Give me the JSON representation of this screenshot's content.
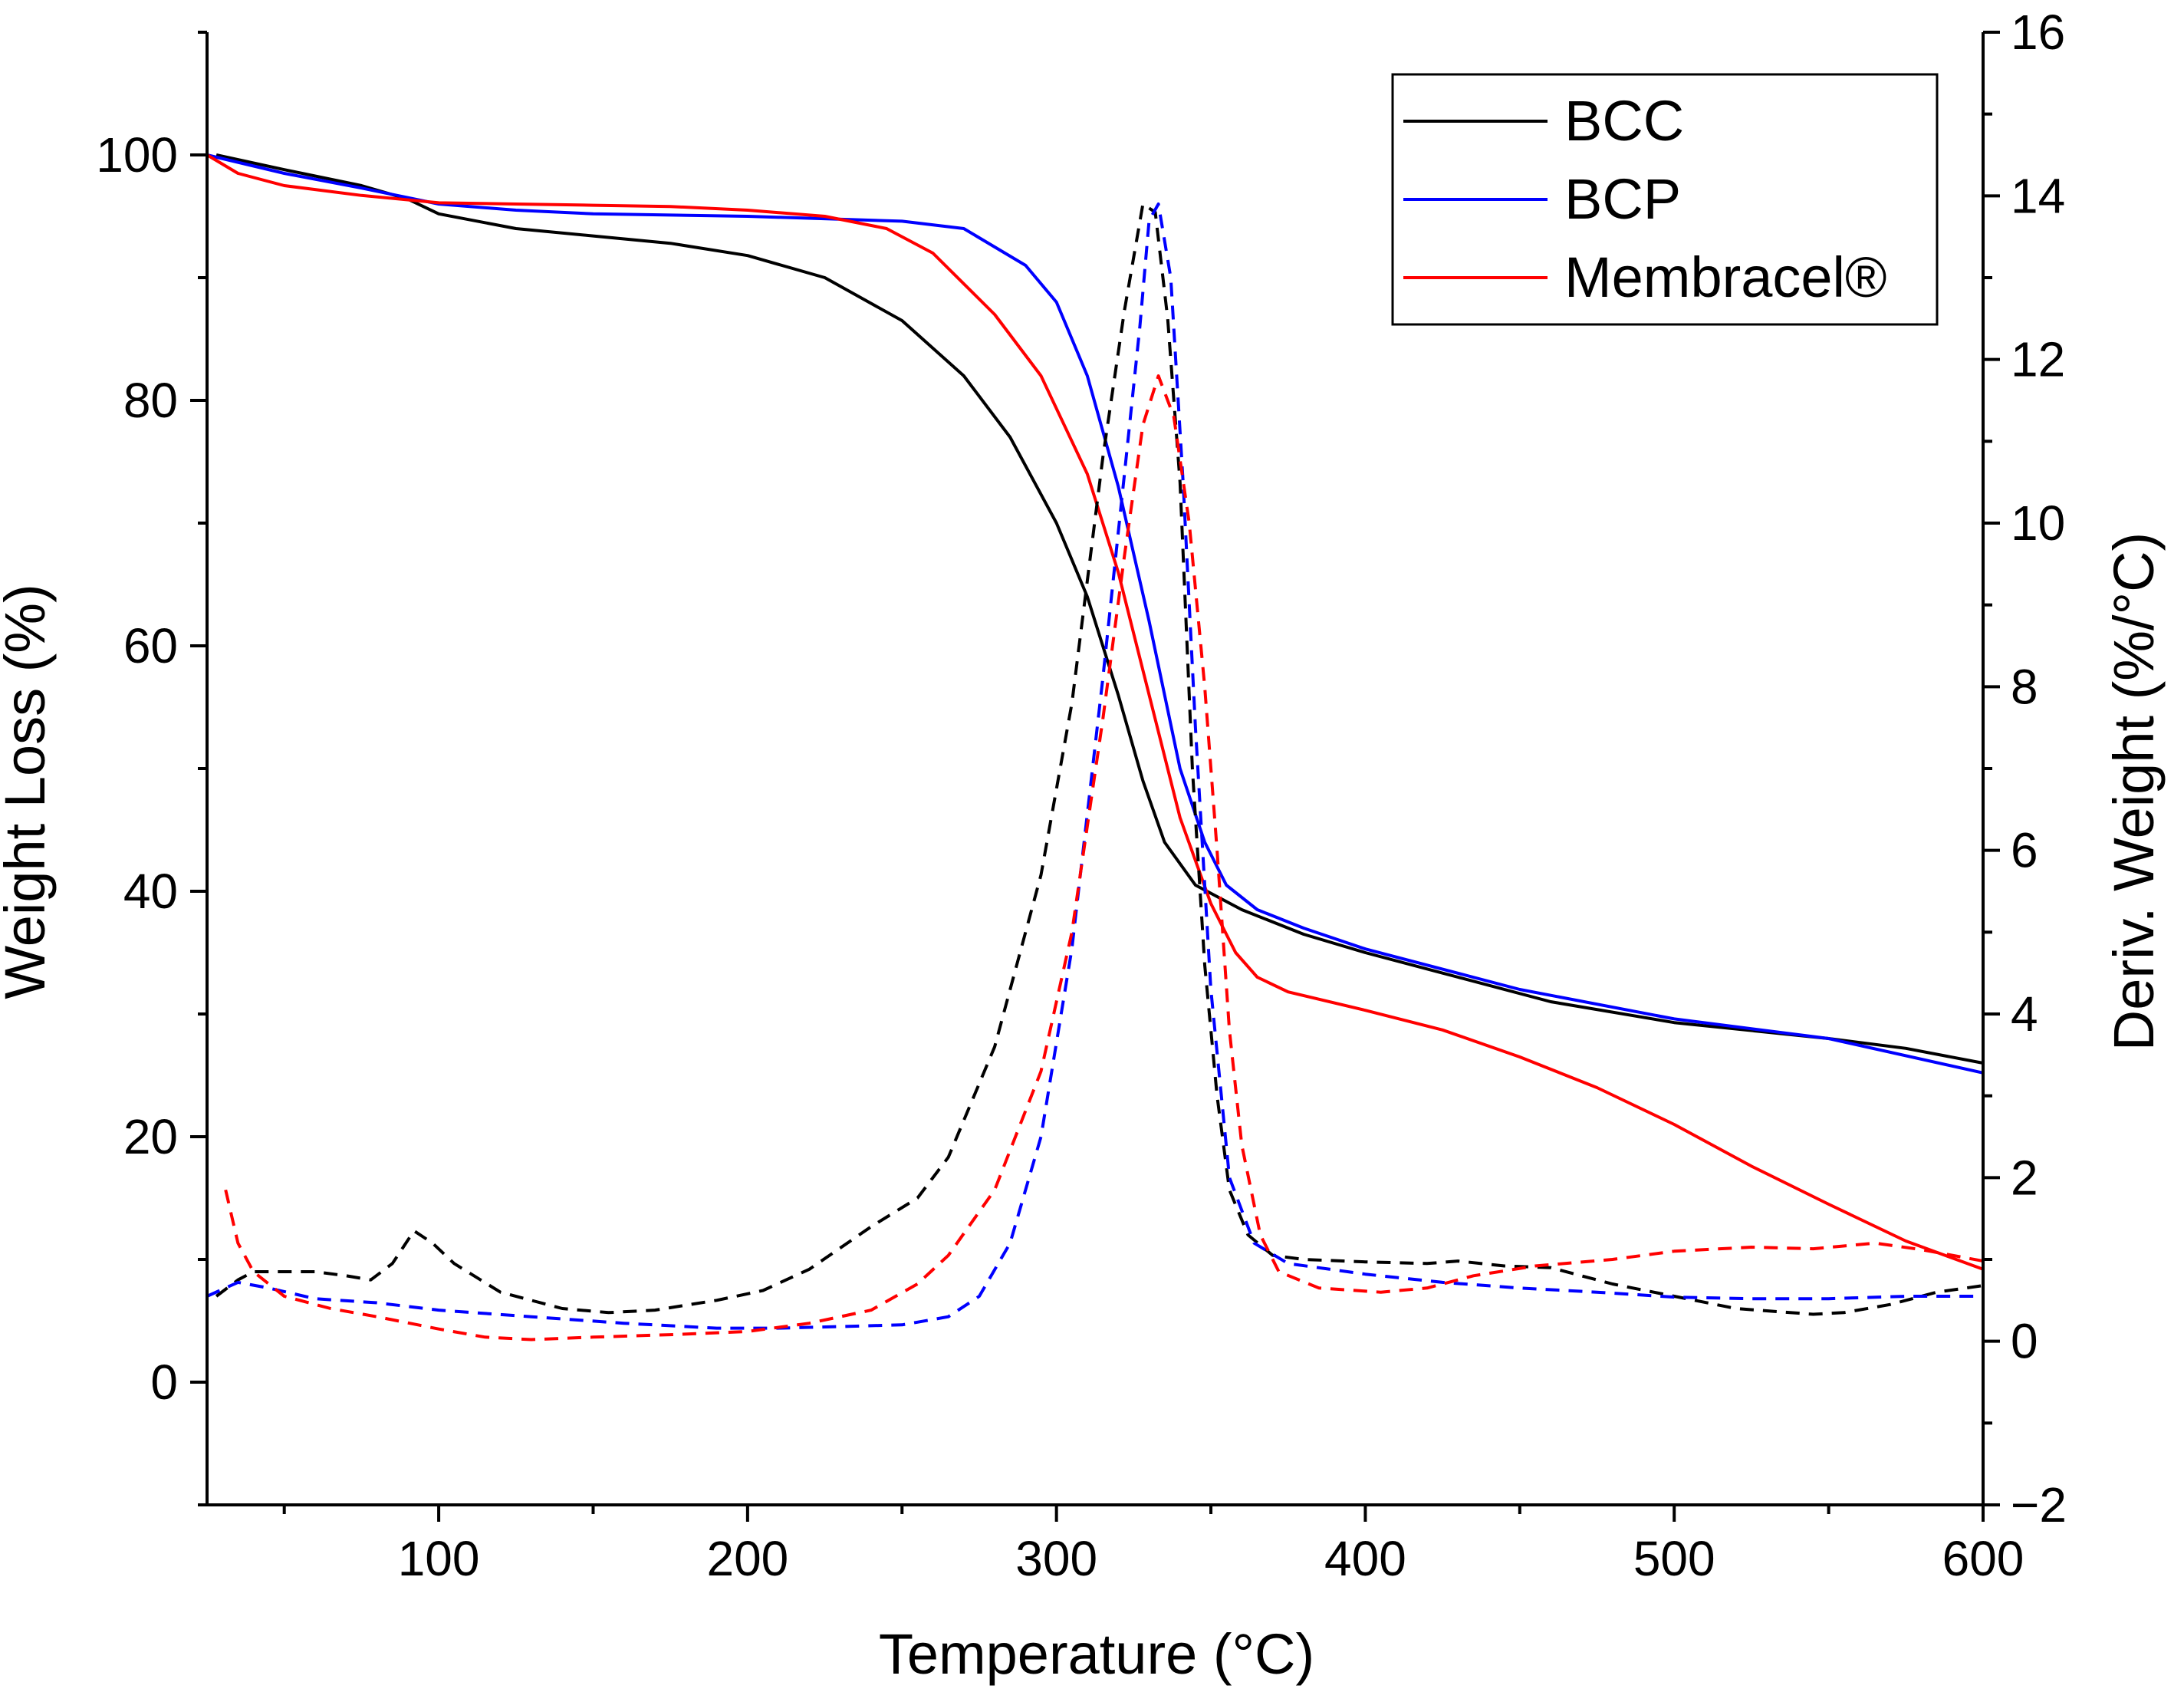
{
  "chart_data": {
    "type": "line",
    "title": "",
    "xlabel": "Temperature (°C)",
    "ylabel": "Weight Loss (%)",
    "y2label": "Deriv. Weight (%/°C)",
    "xlim": [
      25,
      600
    ],
    "ylim": [
      -10,
      110
    ],
    "y2lim": [
      -2,
      16
    ],
    "xticks": [
      100,
      200,
      300,
      400,
      500,
      600
    ],
    "xtick_labels": [
      "100",
      "200",
      "300",
      "400",
      "500",
      "600"
    ],
    "yticks": [
      0,
      20,
      40,
      60,
      80,
      100
    ],
    "ytick_labels": [
      "0",
      "20",
      "40",
      "60",
      "80",
      "100"
    ],
    "y2ticks": [
      -2,
      0,
      2,
      4,
      6,
      8,
      10,
      12,
      14,
      16
    ],
    "y2tick_labels": [
      "−2",
      "0",
      "2",
      "4",
      "6",
      "8",
      "10",
      "12",
      "14",
      "16"
    ],
    "grid": false,
    "legend_position": "top-right",
    "series": [
      {
        "name": "BCC",
        "color": "#000000",
        "axis": "left",
        "style": "solid",
        "points": [
          [
            28,
            100
          ],
          [
            50,
            98.8
          ],
          [
            75,
            97.5
          ],
          [
            90,
            96.4
          ],
          [
            100,
            95.2
          ],
          [
            125,
            94
          ],
          [
            150,
            93.4
          ],
          [
            175,
            92.8
          ],
          [
            200,
            91.8
          ],
          [
            225,
            90
          ],
          [
            250,
            86.5
          ],
          [
            270,
            82
          ],
          [
            285,
            77
          ],
          [
            300,
            70
          ],
          [
            310,
            64
          ],
          [
            320,
            56
          ],
          [
            328,
            49
          ],
          [
            335,
            44
          ],
          [
            345,
            40.5
          ],
          [
            360,
            38.5
          ],
          [
            380,
            36.5
          ],
          [
            400,
            35
          ],
          [
            430,
            33
          ],
          [
            460,
            31
          ],
          [
            500,
            29.3
          ],
          [
            550,
            28
          ],
          [
            575,
            27.2
          ],
          [
            600,
            26
          ]
        ]
      },
      {
        "name": "BCP",
        "color": "#0000ff",
        "axis": "left",
        "style": "solid",
        "points": [
          [
            25,
            100
          ],
          [
            50,
            98.5
          ],
          [
            75,
            97.3
          ],
          [
            100,
            96
          ],
          [
            125,
            95.5
          ],
          [
            150,
            95.2
          ],
          [
            200,
            95
          ],
          [
            250,
            94.6
          ],
          [
            270,
            94
          ],
          [
            290,
            91
          ],
          [
            300,
            88
          ],
          [
            310,
            82
          ],
          [
            320,
            73
          ],
          [
            330,
            62
          ],
          [
            340,
            50
          ],
          [
            348,
            44
          ],
          [
            355,
            40.5
          ],
          [
            365,
            38.5
          ],
          [
            380,
            37
          ],
          [
            400,
            35.3
          ],
          [
            450,
            32
          ],
          [
            500,
            29.6
          ],
          [
            550,
            28
          ],
          [
            600,
            25.2
          ]
        ]
      },
      {
        "name": "Membracel®",
        "color": "#ff0000",
        "axis": "left",
        "style": "solid",
        "points": [
          [
            25,
            100
          ],
          [
            35,
            98.5
          ],
          [
            50,
            97.5
          ],
          [
            75,
            96.7
          ],
          [
            100,
            96.1
          ],
          [
            125,
            96
          ],
          [
            150,
            95.9
          ],
          [
            175,
            95.8
          ],
          [
            200,
            95.5
          ],
          [
            225,
            95
          ],
          [
            245,
            94
          ],
          [
            260,
            92
          ],
          [
            280,
            87
          ],
          [
            295,
            82
          ],
          [
            310,
            74
          ],
          [
            320,
            66
          ],
          [
            330,
            56
          ],
          [
            340,
            46
          ],
          [
            350,
            39
          ],
          [
            358,
            35
          ],
          [
            365,
            33
          ],
          [
            375,
            31.8
          ],
          [
            400,
            30.3
          ],
          [
            425,
            28.7
          ],
          [
            450,
            26.5
          ],
          [
            475,
            24
          ],
          [
            500,
            21
          ],
          [
            525,
            17.6
          ],
          [
            550,
            14.5
          ],
          [
            575,
            11.5
          ],
          [
            600,
            9.2
          ]
        ]
      },
      {
        "name": "BCC",
        "color": "#000000",
        "axis": "right",
        "style": "dashed",
        "points": [
          [
            28,
            0.55
          ],
          [
            35,
            0.75
          ],
          [
            40,
            0.85
          ],
          [
            50,
            0.85
          ],
          [
            60,
            0.85
          ],
          [
            70,
            0.8
          ],
          [
            78,
            0.75
          ],
          [
            85,
            0.95
          ],
          [
            92,
            1.35
          ],
          [
            98,
            1.2
          ],
          [
            105,
            0.95
          ],
          [
            120,
            0.6
          ],
          [
            140,
            0.4
          ],
          [
            155,
            0.35
          ],
          [
            170,
            0.38
          ],
          [
            190,
            0.5
          ],
          [
            205,
            0.62
          ],
          [
            220,
            0.88
          ],
          [
            240,
            1.4
          ],
          [
            255,
            1.75
          ],
          [
            265,
            2.25
          ],
          [
            280,
            3.6
          ],
          [
            295,
            5.7
          ],
          [
            305,
            7.8
          ],
          [
            315,
            10.8
          ],
          [
            322,
            12.6
          ],
          [
            328,
            13.9
          ],
          [
            332,
            13.8
          ],
          [
            336,
            12.5
          ],
          [
            340,
            10.5
          ],
          [
            344,
            7
          ],
          [
            348,
            4.6
          ],
          [
            352,
            3
          ],
          [
            356,
            1.85
          ],
          [
            362,
            1.3
          ],
          [
            370,
            1.05
          ],
          [
            380,
            1
          ],
          [
            400,
            0.97
          ],
          [
            420,
            0.95
          ],
          [
            430,
            0.98
          ],
          [
            445,
            0.92
          ],
          [
            460,
            0.9
          ],
          [
            480,
            0.7
          ],
          [
            500,
            0.55
          ],
          [
            520,
            0.4
          ],
          [
            545,
            0.33
          ],
          [
            555,
            0.35
          ],
          [
            570,
            0.45
          ],
          [
            585,
            0.6
          ],
          [
            600,
            0.68
          ]
        ]
      },
      {
        "name": "BCP",
        "color": "#0000ff",
        "axis": "right",
        "style": "dashed",
        "points": [
          [
            25,
            0.55
          ],
          [
            35,
            0.72
          ],
          [
            45,
            0.65
          ],
          [
            60,
            0.52
          ],
          [
            80,
            0.47
          ],
          [
            100,
            0.38
          ],
          [
            130,
            0.3
          ],
          [
            160,
            0.22
          ],
          [
            190,
            0.16
          ],
          [
            210,
            0.16
          ],
          [
            230,
            0.18
          ],
          [
            250,
            0.2
          ],
          [
            265,
            0.3
          ],
          [
            275,
            0.55
          ],
          [
            285,
            1.2
          ],
          [
            295,
            2.5
          ],
          [
            305,
            4.8
          ],
          [
            315,
            8.1
          ],
          [
            322,
            10.6
          ],
          [
            327,
            12.4
          ],
          [
            330,
            13.7
          ],
          [
            333,
            13.9
          ],
          [
            337,
            13
          ],
          [
            341,
            10.5
          ],
          [
            345,
            7.5
          ],
          [
            350,
            4.3
          ],
          [
            356,
            2
          ],
          [
            364,
            1.2
          ],
          [
            375,
            0.95
          ],
          [
            400,
            0.82
          ],
          [
            425,
            0.72
          ],
          [
            450,
            0.65
          ],
          [
            475,
            0.6
          ],
          [
            500,
            0.54
          ],
          [
            525,
            0.52
          ],
          [
            550,
            0.52
          ],
          [
            575,
            0.55
          ],
          [
            600,
            0.55
          ]
        ]
      },
      {
        "name": "Membracel®",
        "color": "#ff0000",
        "axis": "right",
        "style": "dashed",
        "points": [
          [
            31,
            1.85
          ],
          [
            35,
            1.2
          ],
          [
            40,
            0.85
          ],
          [
            50,
            0.55
          ],
          [
            65,
            0.4
          ],
          [
            80,
            0.3
          ],
          [
            100,
            0.15
          ],
          [
            115,
            0.05
          ],
          [
            130,
            0.02
          ],
          [
            150,
            0.05
          ],
          [
            175,
            0.08
          ],
          [
            200,
            0.12
          ],
          [
            220,
            0.22
          ],
          [
            240,
            0.38
          ],
          [
            255,
            0.7
          ],
          [
            265,
            1.05
          ],
          [
            280,
            1.85
          ],
          [
            295,
            3.3
          ],
          [
            305,
            5
          ],
          [
            315,
            7.6
          ],
          [
            322,
            9.6
          ],
          [
            328,
            11.2
          ],
          [
            333,
            11.8
          ],
          [
            338,
            11.3
          ],
          [
            343,
            10
          ],
          [
            348,
            8
          ],
          [
            352,
            6
          ],
          [
            356,
            3.8
          ],
          [
            360,
            2.4
          ],
          [
            366,
            1.3
          ],
          [
            372,
            0.85
          ],
          [
            385,
            0.65
          ],
          [
            405,
            0.6
          ],
          [
            420,
            0.65
          ],
          [
            435,
            0.8
          ],
          [
            455,
            0.92
          ],
          [
            480,
            1
          ],
          [
            500,
            1.1
          ],
          [
            525,
            1.15
          ],
          [
            545,
            1.13
          ],
          [
            565,
            1.2
          ],
          [
            580,
            1.12
          ],
          [
            600,
            0.98
          ]
        ]
      }
    ],
    "legend": [
      {
        "label": "BCC",
        "color": "#000000"
      },
      {
        "label": "BCP",
        "color": "#0000ff"
      },
      {
        "label": "Membracel®",
        "color": "#ff0000"
      }
    ]
  }
}
